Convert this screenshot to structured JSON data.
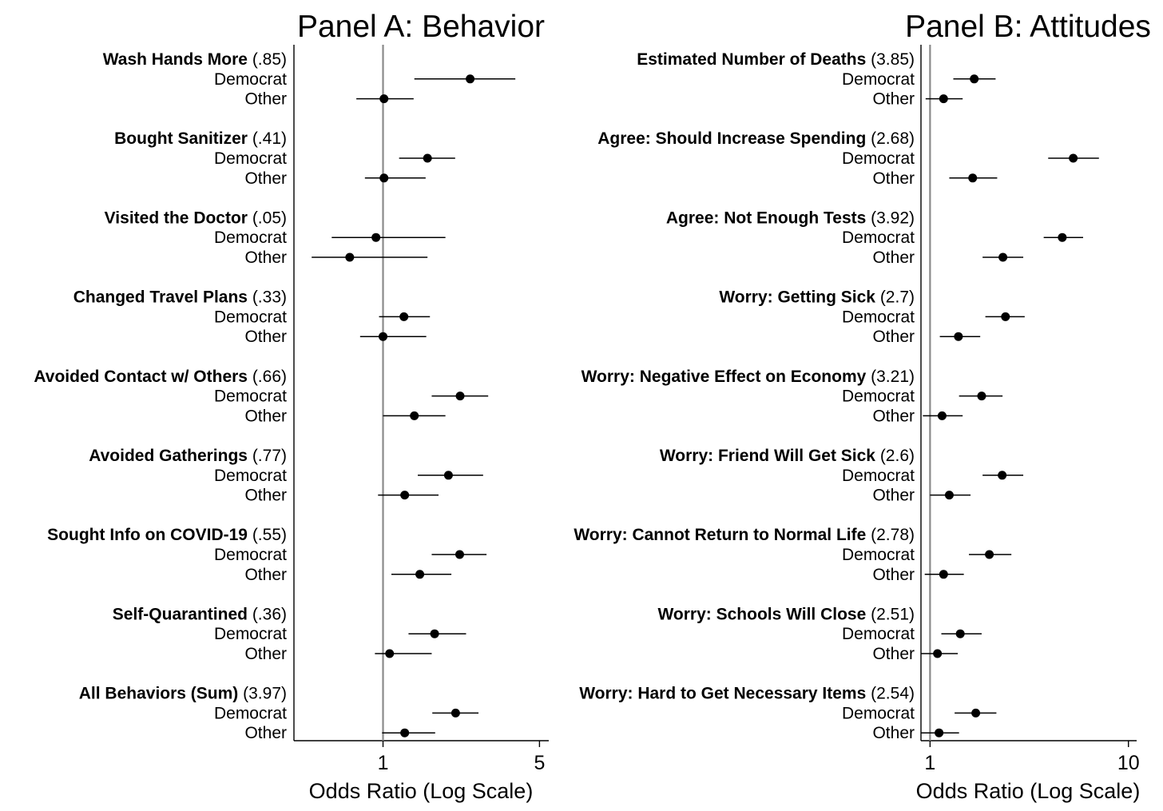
{
  "chart_data": [
    {
      "type": "scatter",
      "title": "Panel A: Behavior",
      "xlabel": "Odds Ratio (Log Scale)",
      "x_scale": "log",
      "xlim": [
        0.4,
        5.5
      ],
      "x_ticks": [
        "1",
        "5"
      ],
      "reference_line": 1,
      "grid": false,
      "row_labels": [
        "Democrat",
        "Other"
      ],
      "outcomes": [
        {
          "label": "Wash Hands More",
          "mean": "(.85)",
          "democrat": {
            "est": 2.45,
            "lo": 1.38,
            "hi": 3.9
          },
          "other": {
            "est": 1.01,
            "lo": 0.76,
            "hi": 1.37
          }
        },
        {
          "label": "Bought Sanitizer",
          "mean": "(.41)",
          "democrat": {
            "est": 1.58,
            "lo": 1.18,
            "hi": 2.1
          },
          "other": {
            "est": 1.01,
            "lo": 0.83,
            "hi": 1.55
          }
        },
        {
          "label": "Visited the Doctor",
          "mean": "(.05)",
          "democrat": {
            "est": 0.93,
            "lo": 0.59,
            "hi": 1.9
          },
          "other": {
            "est": 0.71,
            "lo": 0.48,
            "hi": 1.58
          }
        },
        {
          "label": "Changed Travel Plans",
          "mean": "(.33)",
          "democrat": {
            "est": 1.24,
            "lo": 0.96,
            "hi": 1.62
          },
          "other": {
            "est": 1.0,
            "lo": 0.79,
            "hi": 1.56
          }
        },
        {
          "label": "Avoided Contact w/ Others",
          "mean": "(.66)",
          "democrat": {
            "est": 2.21,
            "lo": 1.65,
            "hi": 2.95
          },
          "other": {
            "est": 1.38,
            "lo": 1.0,
            "hi": 1.9
          }
        },
        {
          "label": "Avoided Gatherings",
          "mean": "(.77)",
          "democrat": {
            "est": 1.96,
            "lo": 1.43,
            "hi": 2.8
          },
          "other": {
            "est": 1.25,
            "lo": 0.95,
            "hi": 1.77
          }
        },
        {
          "label": "Sought Info on COVID-19",
          "mean": "(.55)",
          "democrat": {
            "est": 2.2,
            "lo": 1.65,
            "hi": 2.9
          },
          "other": {
            "est": 1.46,
            "lo": 1.09,
            "hi": 2.02
          }
        },
        {
          "label": "Self-Quarantined",
          "mean": "(.36)",
          "democrat": {
            "est": 1.7,
            "lo": 1.3,
            "hi": 2.35
          },
          "other": {
            "est": 1.07,
            "lo": 0.92,
            "hi": 1.65
          }
        },
        {
          "label": "All Behaviors (Sum)",
          "mean": "(3.97)",
          "democrat": {
            "est": 2.11,
            "lo": 1.66,
            "hi": 2.67
          },
          "other": {
            "est": 1.25,
            "lo": 0.99,
            "hi": 1.71
          }
        }
      ]
    },
    {
      "type": "scatter",
      "title": "Panel B: Attitudes",
      "xlabel": "Odds Ratio (Log Scale)",
      "x_scale": "log",
      "xlim": [
        0.9,
        11
      ],
      "x_ticks": [
        "1",
        "10"
      ],
      "reference_line": 1,
      "grid": false,
      "row_labels": [
        "Democrat",
        "Other"
      ],
      "outcomes": [
        {
          "label": "Estimated Number of Deaths",
          "mean": "(3.85)",
          "democrat": {
            "est": 1.67,
            "lo": 1.31,
            "hi": 2.14
          },
          "other": {
            "est": 1.17,
            "lo": 0.95,
            "hi": 1.46
          }
        },
        {
          "label": "Agree: Should Increase Spending",
          "mean": "(2.68)",
          "democrat": {
            "est": 5.27,
            "lo": 3.94,
            "hi": 7.1
          },
          "other": {
            "est": 1.64,
            "lo": 1.25,
            "hi": 2.18
          }
        },
        {
          "label": "Agree: Not Enough Tests",
          "mean": "(3.92)",
          "democrat": {
            "est": 4.64,
            "lo": 3.74,
            "hi": 5.91
          },
          "other": {
            "est": 2.33,
            "lo": 1.84,
            "hi": 2.95
          }
        },
        {
          "label": "Worry: Getting Sick",
          "mean": "(2.7)",
          "democrat": {
            "est": 2.4,
            "lo": 1.9,
            "hi": 3.0
          },
          "other": {
            "est": 1.39,
            "lo": 1.12,
            "hi": 1.79
          }
        },
        {
          "label": "Worry: Negative Effect on Economy",
          "mean": "(3.21)",
          "democrat": {
            "est": 1.82,
            "lo": 1.4,
            "hi": 2.32
          },
          "other": {
            "est": 1.15,
            "lo": 0.92,
            "hi": 1.46
          }
        },
        {
          "label": "Worry: Friend Will Get Sick",
          "mean": "(2.6)",
          "democrat": {
            "est": 2.31,
            "lo": 1.84,
            "hi": 2.95
          },
          "other": {
            "est": 1.25,
            "lo": 1.0,
            "hi": 1.6
          }
        },
        {
          "label": "Worry: Cannot Return to Normal Life",
          "mean": "(2.78)",
          "democrat": {
            "est": 1.99,
            "lo": 1.57,
            "hi": 2.57
          },
          "other": {
            "est": 1.17,
            "lo": 0.94,
            "hi": 1.48
          }
        },
        {
          "label": "Worry: Schools Will Close",
          "mean": "(2.51)",
          "democrat": {
            "est": 1.42,
            "lo": 1.14,
            "hi": 1.82
          },
          "other": {
            "est": 1.09,
            "lo": 0.9,
            "hi": 1.38
          }
        },
        {
          "label": "Worry: Hard to Get Necessary Items",
          "mean": "(2.54)",
          "democrat": {
            "est": 1.7,
            "lo": 1.33,
            "hi": 2.16
          },
          "other": {
            "est": 1.11,
            "lo": 0.9,
            "hi": 1.4
          }
        }
      ]
    }
  ]
}
